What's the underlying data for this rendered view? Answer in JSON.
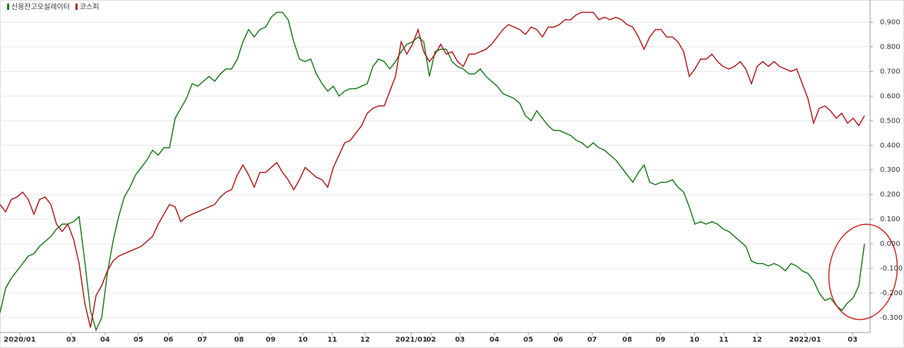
{
  "chart_data": {
    "type": "line",
    "series": [
      {
        "name": "신용잔고오실레이터",
        "color": "#1a7a1a",
        "values": [
          -0.28,
          -0.18,
          -0.14,
          -0.11,
          -0.08,
          -0.05,
          -0.04,
          -0.01,
          0.01,
          0.03,
          0.06,
          0.08,
          0.08,
          0.09,
          0.11,
          -0.07,
          -0.27,
          -0.35,
          -0.3,
          -0.12,
          0.01,
          0.11,
          0.19,
          0.23,
          0.28,
          0.31,
          0.34,
          0.38,
          0.36,
          0.39,
          0.39,
          0.51,
          0.55,
          0.59,
          0.65,
          0.64,
          0.66,
          0.68,
          0.66,
          0.69,
          0.71,
          0.71,
          0.75,
          0.82,
          0.87,
          0.84,
          0.87,
          0.88,
          0.92,
          0.94,
          0.94,
          0.91,
          0.82,
          0.75,
          0.74,
          0.75,
          0.69,
          0.65,
          0.62,
          0.64,
          0.6,
          0.62,
          0.63,
          0.63,
          0.64,
          0.65,
          0.72,
          0.75,
          0.74,
          0.71,
          0.74,
          0.78,
          0.81,
          0.82,
          0.84,
          0.82,
          0.68,
          0.78,
          0.79,
          0.79,
          0.74,
          0.72,
          0.71,
          0.69,
          0.69,
          0.71,
          0.68,
          0.66,
          0.64,
          0.61,
          0.6,
          0.59,
          0.57,
          0.52,
          0.5,
          0.54,
          0.51,
          0.48,
          0.46,
          0.46,
          0.45,
          0.44,
          0.42,
          0.41,
          0.39,
          0.41,
          0.39,
          0.38,
          0.36,
          0.34,
          0.31,
          0.28,
          0.25,
          0.29,
          0.32,
          0.25,
          0.24,
          0.25,
          0.25,
          0.26,
          0.23,
          0.21,
          0.15,
          0.08,
          0.09,
          0.08,
          0.09,
          0.08,
          0.06,
          0.05,
          0.03,
          0.01,
          -0.01,
          -0.07,
          -0.08,
          -0.08,
          -0.09,
          -0.08,
          -0.09,
          -0.11,
          -0.08,
          -0.09,
          -0.11,
          -0.12,
          -0.15,
          -0.2,
          -0.23,
          -0.22,
          -0.25,
          -0.27,
          -0.24,
          -0.22,
          -0.17,
          0.0
        ]
      },
      {
        "name": "코스피",
        "color": "#b01818",
        "values": [
          0.16,
          0.13,
          0.18,
          0.19,
          0.21,
          0.18,
          0.12,
          0.18,
          0.19,
          0.16,
          0.08,
          0.05,
          0.08,
          0.02,
          -0.08,
          -0.24,
          -0.34,
          -0.21,
          -0.17,
          -0.11,
          -0.07,
          -0.05,
          -0.04,
          -0.03,
          -0.02,
          -0.01,
          0.01,
          0.03,
          0.08,
          0.12,
          0.16,
          0.15,
          0.09,
          0.11,
          0.12,
          0.13,
          0.14,
          0.15,
          0.16,
          0.19,
          0.21,
          0.22,
          0.28,
          0.32,
          0.28,
          0.23,
          0.29,
          0.29,
          0.31,
          0.33,
          0.29,
          0.26,
          0.22,
          0.26,
          0.31,
          0.29,
          0.27,
          0.26,
          0.23,
          0.31,
          0.36,
          0.41,
          0.42,
          0.45,
          0.48,
          0.53,
          0.55,
          0.56,
          0.56,
          0.62,
          0.68,
          0.82,
          0.77,
          0.81,
          0.87,
          0.78,
          0.74,
          0.77,
          0.81,
          0.77,
          0.78,
          0.74,
          0.72,
          0.77,
          0.77,
          0.78,
          0.79,
          0.81,
          0.84,
          0.87,
          0.89,
          0.88,
          0.87,
          0.85,
          0.88,
          0.87,
          0.84,
          0.88,
          0.88,
          0.89,
          0.91,
          0.91,
          0.93,
          0.94,
          0.94,
          0.94,
          0.91,
          0.92,
          0.91,
          0.92,
          0.91,
          0.89,
          0.88,
          0.84,
          0.79,
          0.84,
          0.87,
          0.87,
          0.84,
          0.84,
          0.82,
          0.78,
          0.68,
          0.71,
          0.75,
          0.75,
          0.77,
          0.74,
          0.72,
          0.71,
          0.72,
          0.74,
          0.71,
          0.65,
          0.72,
          0.74,
          0.72,
          0.74,
          0.72,
          0.71,
          0.7,
          0.71,
          0.65,
          0.59,
          0.49,
          0.55,
          0.56,
          0.54,
          0.51,
          0.53,
          0.49,
          0.51,
          0.48,
          0.52
        ]
      }
    ],
    "xlim": [
      0,
      154
    ],
    "xticks": [
      {
        "value": 3.5,
        "label": "2020/01"
      },
      {
        "value": 12.6,
        "label": "03"
      },
      {
        "value": 18.6,
        "label": "04"
      },
      {
        "value": 24.5,
        "label": "05"
      },
      {
        "value": 29.8,
        "label": "06"
      },
      {
        "value": 35.8,
        "label": "07"
      },
      {
        "value": 42.3,
        "label": "08"
      },
      {
        "value": 47.9,
        "label": "09"
      },
      {
        "value": 53.6,
        "label": "10"
      },
      {
        "value": 58.8,
        "label": "11"
      },
      {
        "value": 64.6,
        "label": "12"
      },
      {
        "value": 72.8,
        "label": "2021/01"
      },
      {
        "value": 76.3,
        "label": "02"
      },
      {
        "value": 81.4,
        "label": "03"
      },
      {
        "value": 87.5,
        "label": "04"
      },
      {
        "value": 93.5,
        "label": "05"
      },
      {
        "value": 98.8,
        "label": "06"
      },
      {
        "value": 104.8,
        "label": "07"
      },
      {
        "value": 111,
        "label": "08"
      },
      {
        "value": 116.9,
        "label": "09"
      },
      {
        "value": 122.9,
        "label": "10"
      },
      {
        "value": 128.1,
        "label": "11"
      },
      {
        "value": 134,
        "label": "12"
      },
      {
        "value": 142.5,
        "label": "2022/01"
      },
      {
        "value": 150.9,
        "label": "03"
      }
    ],
    "ylim": [
      -0.36,
      0.99
    ],
    "yticks": [
      {
        "value": 0.9,
        "label": "0.900"
      },
      {
        "value": 0.8,
        "label": "0.800"
      },
      {
        "value": 0.7,
        "label": "0.700"
      },
      {
        "value": 0.6,
        "label": "0.600"
      },
      {
        "value": 0.5,
        "label": "0.500"
      },
      {
        "value": 0.4,
        "label": "0.400"
      },
      {
        "value": 0.3,
        "label": "0.300"
      },
      {
        "value": 0.2,
        "label": "0.200"
      },
      {
        "value": 0.1,
        "label": "0.100"
      },
      {
        "value": 0,
        "label": "0.000"
      },
      {
        "value": -0.1,
        "label": "-0.100"
      },
      {
        "value": -0.2,
        "label": "-0.200"
      },
      {
        "value": -0.3,
        "label": "-0.300"
      }
    ],
    "grid": true
  }
}
